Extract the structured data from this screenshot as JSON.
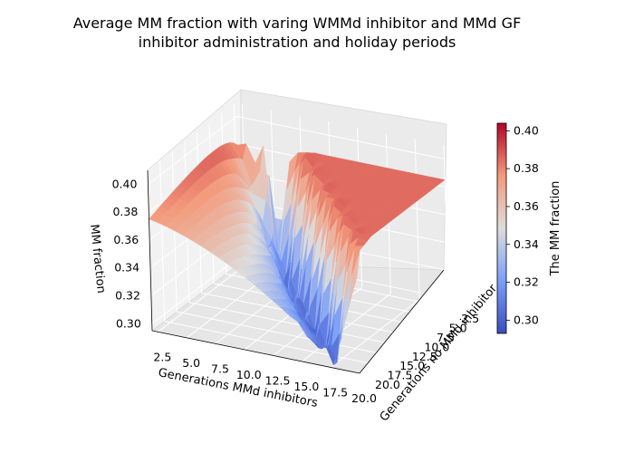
{
  "chart_data": {
    "type": "surface3d",
    "title_lines": [
      "Average MM fraction with varing WMMd inhibitor and MMd GF",
      "inhibitor administration and holiday periods"
    ],
    "xlabel": "Generations MMd inhibitors",
    "ylabel": "Generations no MMd inhibitor",
    "zlabel": "MM fraction",
    "x_ticks": [
      "2.5",
      "5.0",
      "7.5",
      "10.0",
      "12.5",
      "15.0",
      "17.5",
      "20.0"
    ],
    "y_ticks": [
      "2.5",
      "5.0",
      "7.5",
      "10.0",
      "12.5",
      "15.0",
      "17.5",
      "20.0"
    ],
    "z_ticks": [
      "0.30",
      "0.32",
      "0.34",
      "0.36",
      "0.38",
      "0.40"
    ],
    "x_range": [
      2,
      20
    ],
    "y_range": [
      2,
      20
    ],
    "z_range": [
      0.295,
      0.41
    ],
    "colormap": "coolwarm",
    "colorbar": {
      "label": "The MM fraction",
      "ticks": [
        "0.30",
        "0.32",
        "0.34",
        "0.36",
        "0.38",
        "0.40"
      ],
      "range": [
        0.293,
        0.404
      ]
    },
    "grid": true,
    "surface_summary": {
      "max_value": 0.404,
      "min_value": 0.297,
      "high_plateau_value": 0.385
    }
  }
}
